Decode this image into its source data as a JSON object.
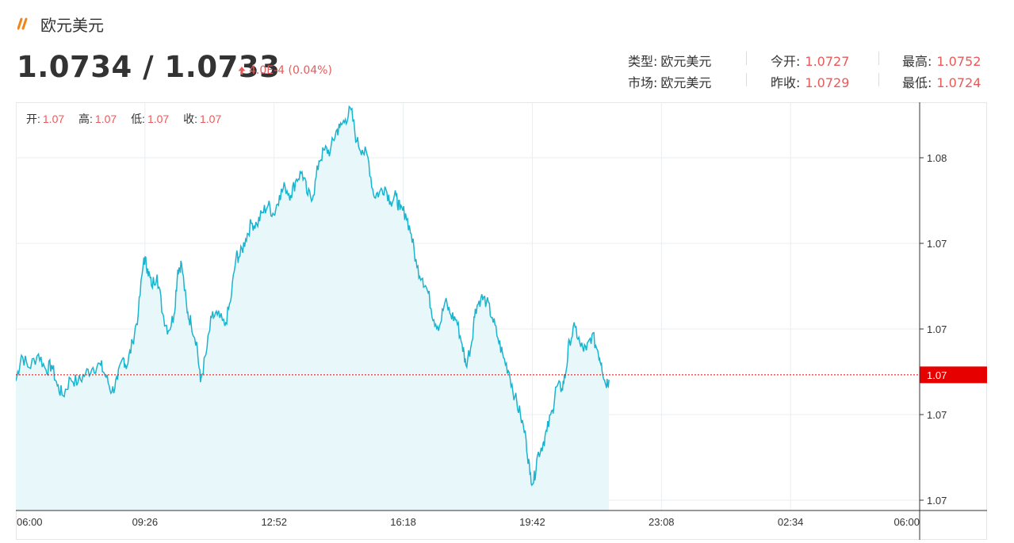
{
  "header": {
    "title": "欧元美元",
    "price": "1.0734 / 1.0733",
    "change": "4.0E-4 (0.04%)"
  },
  "stats": {
    "type_label": "类型:",
    "type_value": "欧元美元",
    "market_label": "市场:",
    "market_value": "欧元美元",
    "open_label": "今开:",
    "open_value": "1.0727",
    "prev_close_label": "昨收:",
    "prev_close_value": "1.0729",
    "high_label": "最高:",
    "high_value": "1.0752",
    "low_label": "最低:",
    "low_value": "1.0724"
  },
  "ohlc_bar": {
    "open_label": "开:",
    "open_value": "1.07",
    "high_label": "高:",
    "high_value": "1.07",
    "low_label": "低:",
    "low_value": "1.07",
    "close_label": "收:",
    "close_value": "1.07"
  },
  "colors": {
    "line": "#1ab4cf",
    "area": "#e8f8fa",
    "up": "#e85a5a",
    "current_tag": "#e60000",
    "accent_mark": "#f08519"
  },
  "chart_data": {
    "type": "area",
    "x_tick_labels": [
      "06:00",
      "09:26",
      "12:52",
      "16:18",
      "19:42",
      "23:08",
      "02:34",
      "06:00"
    ],
    "y_tick_labels": [
      "1.08",
      "1.07",
      "1.07",
      "1.07",
      "1.07"
    ],
    "current_label": "1.07",
    "current_value": 1.07335,
    "ylim": [
      1.07224,
      1.07558
    ],
    "xlim_hours": [
      0,
      24
    ],
    "grid": true,
    "points": [
      [
        0.0,
        1.0733
      ],
      [
        0.15,
        1.07351
      ],
      [
        0.35,
        1.07341
      ],
      [
        0.6,
        1.07352
      ],
      [
        0.8,
        1.07339
      ],
      [
        0.95,
        1.07343
      ],
      [
        1.1,
        1.07326
      ],
      [
        1.25,
        1.07318
      ],
      [
        1.45,
        1.07332
      ],
      [
        1.65,
        1.07329
      ],
      [
        1.85,
        1.07336
      ],
      [
        2.05,
        1.07341
      ],
      [
        2.25,
        1.07343
      ],
      [
        2.4,
        1.07333
      ],
      [
        2.55,
        1.07321
      ],
      [
        2.7,
        1.07331
      ],
      [
        2.85,
        1.07349
      ],
      [
        2.95,
        1.07342
      ],
      [
        3.1,
        1.07362
      ],
      [
        3.25,
        1.07385
      ],
      [
        3.4,
        1.07431
      ],
      [
        3.5,
        1.07422
      ],
      [
        3.6,
        1.07408
      ],
      [
        3.75,
        1.07417
      ],
      [
        3.9,
        1.07385
      ],
      [
        4.05,
        1.07371
      ],
      [
        4.2,
        1.07384
      ],
      [
        4.3,
        1.07421
      ],
      [
        4.4,
        1.07426
      ],
      [
        4.55,
        1.07386
      ],
      [
        4.65,
        1.07378
      ],
      [
        4.8,
        1.07362
      ],
      [
        4.9,
        1.07329
      ],
      [
        5.05,
        1.07352
      ],
      [
        5.2,
        1.07382
      ],
      [
        5.35,
        1.07384
      ],
      [
        5.55,
        1.07375
      ],
      [
        5.7,
        1.07395
      ],
      [
        5.85,
        1.07432
      ],
      [
        5.95,
        1.07432
      ],
      [
        6.1,
        1.07446
      ],
      [
        6.25,
        1.07459
      ],
      [
        6.4,
        1.07458
      ],
      [
        6.55,
        1.07468
      ],
      [
        6.7,
        1.07474
      ],
      [
        6.85,
        1.07466
      ],
      [
        7.0,
        1.07482
      ],
      [
        7.15,
        1.07489
      ],
      [
        7.3,
        1.07482
      ],
      [
        7.45,
        1.07495
      ],
      [
        7.6,
        1.07501
      ],
      [
        7.75,
        1.07482
      ],
      [
        7.9,
        1.07482
      ],
      [
        8.05,
        1.0751
      ],
      [
        8.2,
        1.07519
      ],
      [
        8.35,
        1.07518
      ],
      [
        8.5,
        1.07534
      ],
      [
        8.6,
        1.07537
      ],
      [
        8.75,
        1.07544
      ],
      [
        8.9,
        1.07552
      ],
      [
        9.05,
        1.07526
      ],
      [
        9.2,
        1.07519
      ],
      [
        9.35,
        1.07513
      ],
      [
        9.5,
        1.07482
      ],
      [
        9.65,
        1.07484
      ],
      [
        9.8,
        1.07489
      ],
      [
        9.95,
        1.07477
      ],
      [
        10.1,
        1.07481
      ],
      [
        10.2,
        1.0747
      ],
      [
        10.35,
        1.07467
      ],
      [
        10.5,
        1.0745
      ],
      [
        10.65,
        1.07423
      ],
      [
        10.8,
        1.07414
      ],
      [
        10.95,
        1.07402
      ],
      [
        11.1,
        1.0738
      ],
      [
        11.25,
        1.07375
      ],
      [
        11.4,
        1.07395
      ],
      [
        11.55,
        1.07384
      ],
      [
        11.7,
        1.0738
      ],
      [
        11.85,
        1.0736
      ],
      [
        11.95,
        1.07343
      ],
      [
        12.1,
        1.07361
      ],
      [
        12.2,
        1.07389
      ],
      [
        12.35,
        1.07398
      ],
      [
        12.5,
        1.07395
      ],
      [
        12.65,
        1.07382
      ],
      [
        12.8,
        1.07365
      ],
      [
        12.95,
        1.07349
      ],
      [
        13.1,
        1.07337
      ],
      [
        13.25,
        1.07317
      ],
      [
        13.4,
        1.07302
      ],
      [
        13.55,
        1.07282
      ],
      [
        13.65,
        1.07254
      ],
      [
        13.75,
        1.07247
      ],
      [
        13.85,
        1.07269
      ],
      [
        14.0,
        1.07279
      ],
      [
        14.1,
        1.07289
      ],
      [
        14.25,
        1.07306
      ],
      [
        14.35,
        1.07325
      ],
      [
        14.5,
        1.07324
      ],
      [
        14.6,
        1.07336
      ],
      [
        14.7,
        1.07363
      ],
      [
        14.85,
        1.07374
      ],
      [
        15.0,
        1.07358
      ],
      [
        15.15,
        1.07355
      ],
      [
        15.3,
        1.07368
      ],
      [
        15.45,
        1.07355
      ],
      [
        15.55,
        1.07345
      ],
      [
        15.65,
        1.07328
      ],
      [
        15.75,
        1.07331
      ]
    ]
  }
}
